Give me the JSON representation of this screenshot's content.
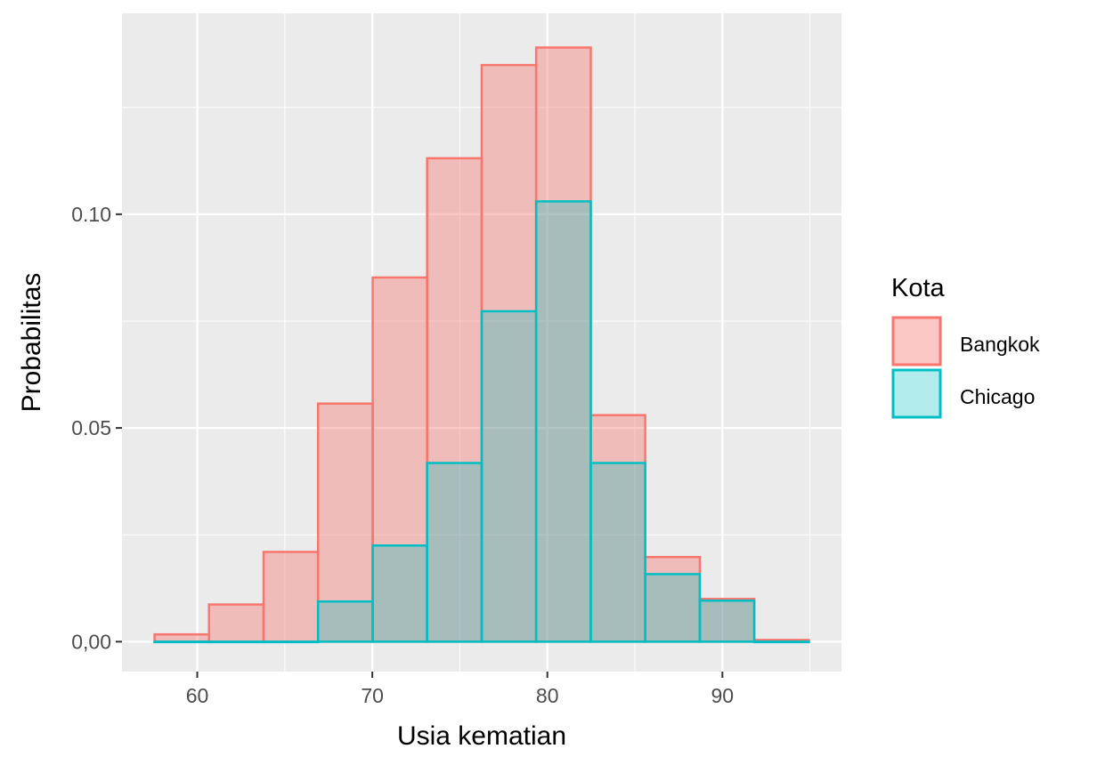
{
  "chart_data": {
    "type": "histogram",
    "title": "",
    "xlabel": "Usia kematian",
    "ylabel": "Probabilitas",
    "xlim": [
      55.7,
      96.8
    ],
    "ylim": [
      -0.007,
      0.147
    ],
    "x_ticks": [
      60,
      70,
      80,
      90
    ],
    "x_tick_labels": [
      "60",
      "70",
      "80",
      "90"
    ],
    "y_ticks": [
      0.0,
      0.05,
      0.1
    ],
    "y_tick_labels": [
      "0,00",
      "0.05",
      "0.10"
    ],
    "grid": true,
    "bin_edges": [
      57.56,
      60.67,
      63.79,
      66.9,
      70.02,
      73.13,
      76.25,
      79.36,
      82.48,
      85.59,
      88.71,
      91.82,
      94.94
    ],
    "legend": {
      "title": "Kota",
      "position": "right"
    },
    "series": [
      {
        "name": "Bangkok",
        "color": "#F8766D",
        "values": [
          0.0017,
          0.0087,
          0.021,
          0.0557,
          0.0852,
          0.1131,
          0.1349,
          0.139,
          0.053,
          0.0198,
          0.01,
          0.0004
        ]
      },
      {
        "name": "Chicago",
        "color": "#00BFC4",
        "values": [
          0,
          0,
          0,
          0.0094,
          0.0225,
          0.0418,
          0.0773,
          0.103,
          0.0418,
          0.0158,
          0.0096,
          0
        ]
      }
    ]
  }
}
